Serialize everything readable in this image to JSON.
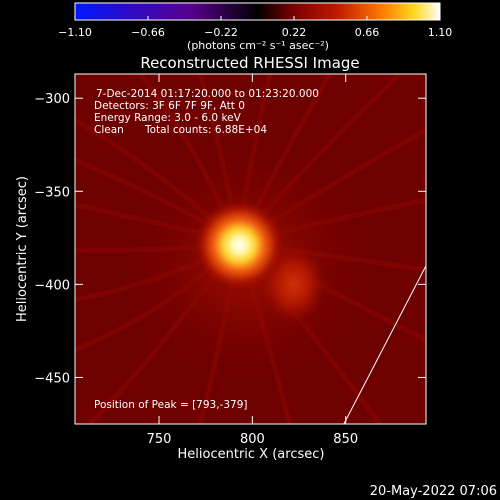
{
  "colorbar": {
    "ticks": [
      "−1.10",
      "−0.66",
      "−0.22",
      "0.22",
      "0.66",
      "1.10"
    ],
    "tick_values": [
      -1.1,
      -0.66,
      -0.22,
      0.22,
      0.66,
      1.1
    ],
    "range": [
      -1.1,
      1.1
    ],
    "unit_label": "(photons cm⁻² s⁻¹ asec⁻²)"
  },
  "chart_data": {
    "type": "heatmap",
    "title": "Reconstructed RHESSI Image",
    "xlabel": "Heliocentric X (arcsec)",
    "ylabel": "Heliocentric Y (arcsec)",
    "xlim": [
      705,
      893
    ],
    "ylim": [
      -475,
      -287
    ],
    "x_ticks": [
      750,
      800,
      850
    ],
    "x_tick_labels": [
      "750",
      "800",
      "850"
    ],
    "y_ticks": [
      -300,
      -350,
      -400,
      -450
    ],
    "y_tick_labels": [
      "−300",
      "−350",
      "−400",
      "−450"
    ],
    "colormap": "rhessi-blue-purple-red-yellow-white",
    "sources": [
      {
        "x": 793,
        "y": -379,
        "peak": 1.1
      },
      {
        "x": 822,
        "y": -400,
        "peak": 0.38
      }
    ],
    "limb_line": [
      [
        849,
        -475
      ],
      [
        893,
        -390
      ]
    ]
  },
  "info": {
    "time_range": "7-Dec-2014 01:17:20.000 to 01:23:20.000",
    "detectors": "Detectors: 3F 6F 7F 9F, Att 0",
    "energy": "Energy Range: 3.0 - 6.0 keV",
    "method": "Clean",
    "counts": "Total counts: 6.88E+04",
    "peak": "Position of Peak = [793,-379]"
  },
  "footer": {
    "date": "20-May-2022 07:06"
  }
}
